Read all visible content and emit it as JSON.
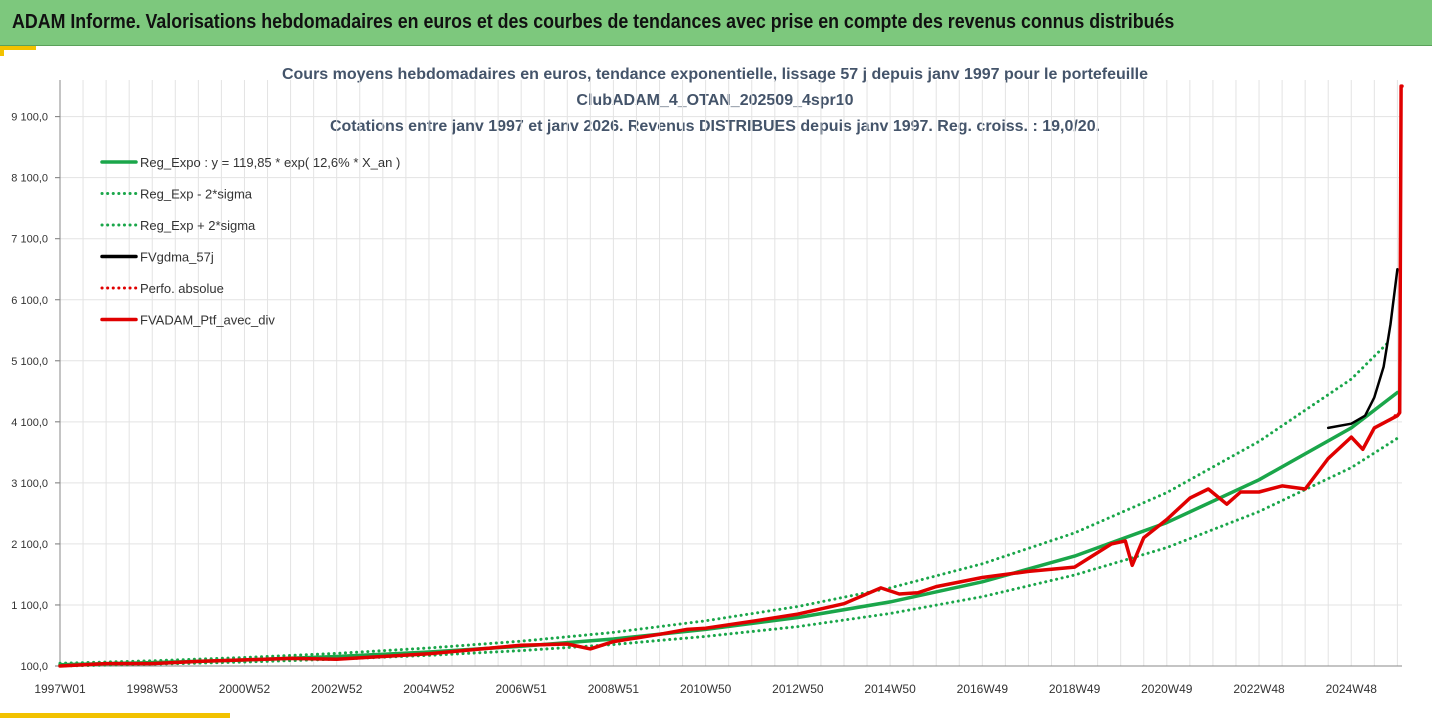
{
  "header": {
    "title": "ADAM Informe. Valorisations hebdomadaires en euros et des courbes de tendances avec prise en compte des revenus connus distribués"
  },
  "colors": {
    "banner": "#7dc87d",
    "accent": "#f2c200",
    "regression": "#1aa64a",
    "moving_average": "#000000",
    "portfolio": "#e00000"
  },
  "chart_data": {
    "type": "line",
    "title_lines": [
      "Cours moyens hebdomadaires  en euros, tendance exponentielle, lissage 57 j depuis janv 1997 pour le portefeuille",
      "ClubADAM_4_OTAN_202509_4spr10",
      "Cotations entre janv 1997 et janv 2026. Revenus DISTRIBUES depuis janv 1997. Reg. croiss. : 19,0/20."
    ],
    "x_range": [
      1997.0,
      2026.1
    ],
    "y_range": [
      100,
      9700
    ],
    "y_ticks": [
      100,
      1100,
      2100,
      3100,
      4100,
      5100,
      6100,
      7100,
      8100,
      9100
    ],
    "y_tick_labels": [
      "100,0",
      "1 100,0",
      "2 100,0",
      "3 100,0",
      "4 100,0",
      "5 100,0",
      "6 100,0",
      "7 100,0",
      "8 100,0",
      "9 100,0"
    ],
    "x_ticks": [
      1997.0,
      1999.0,
      2001.0,
      2003.0,
      2005.0,
      2007.0,
      2009.0,
      2011.0,
      2013.0,
      2015.0,
      2017.0,
      2019.0,
      2021.0,
      2023.0,
      2025.0
    ],
    "x_tick_labels": [
      "1997W01",
      "1998W53",
      "2000W52",
      "2002W52",
      "2004W52",
      "2006W51",
      "2008W51",
      "2010W50",
      "2012W50",
      "2014W50",
      "2016W49",
      "2018W49",
      "2020W49",
      "2022W48",
      "2024W48"
    ],
    "grid": true,
    "legend_position": "top-left",
    "legend": [
      {
        "label": "Reg_Expo : y = 119,85 * exp( 12,6% *  X_an )",
        "color": "#1aa64a",
        "style": "solid"
      },
      {
        "label": "Reg_Exp - 2*sigma",
        "color": "#1aa64a",
        "style": "dotted"
      },
      {
        "label": "Reg_Exp + 2*sigma",
        "color": "#1aa64a",
        "style": "dotted"
      },
      {
        "label": "FVgdma_57j",
        "color": "#000000",
        "style": "solid"
      },
      {
        "label": "Perfo. absolue",
        "color": "#e00000",
        "style": "dotted"
      },
      {
        "label": "FVADAM_Ptf_avec_div",
        "color": "#e00000",
        "style": "solid"
      }
    ],
    "series": [
      {
        "name": "Reg_Expo : y = 119,85 * exp( 12,6% *  X_an )",
        "x": [
          1997.0,
          1999.0,
          2001.0,
          2003.0,
          2005.0,
          2007.0,
          2009.0,
          2011.0,
          2013.0,
          2015.0,
          2017.0,
          2019.0,
          2021.0,
          2023.0,
          2025.0,
          2026.0
        ],
        "y": [
          120,
          155,
          199,
          255,
          329,
          422,
          542,
          700,
          895,
          1150,
          1480,
          1900,
          2450,
          3150,
          4000,
          4580
        ]
      },
      {
        "name": "Reg_Exp - 2*sigma",
        "x": [
          1997.0,
          1999.0,
          2001.0,
          2003.0,
          2005.0,
          2007.0,
          2009.0,
          2011.0,
          2013.0,
          2015.0,
          2017.0,
          2019.0,
          2021.0,
          2023.0,
          2025.0,
          2026.0
        ],
        "y": [
          100,
          130,
          166,
          213,
          275,
          352,
          452,
          585,
          745,
          960,
          1235,
          1590,
          2040,
          2630,
          3350,
          3830
        ]
      },
      {
        "name": "Reg_Exp + 2*sigma",
        "x": [
          1997.0,
          1999.0,
          2001.0,
          2003.0,
          2005.0,
          2007.0,
          2009.0,
          2011.0,
          2013.0,
          2015.0,
          2017.0,
          2019.0,
          2021.0,
          2023.0,
          2025.0,
          2025.8
        ],
        "y": [
          145,
          186,
          239,
          306,
          395,
          506,
          650,
          840,
          1075,
          1380,
          1775,
          2280,
          2940,
          3780,
          4800,
          5400
        ]
      },
      {
        "name": "FVgdma_57j",
        "x": [
          2024.5,
          2025.0,
          2025.3,
          2025.5,
          2025.7,
          2025.85,
          2026.0
        ],
        "y": [
          4000,
          4070,
          4200,
          4500,
          5000,
          5700,
          6600
        ]
      },
      {
        "name": "Perfo. absolue",
        "x": [
          2025.95,
          2026.05
        ],
        "y": [
          4200,
          4250
        ]
      },
      {
        "name": "FVADAM_Ptf_avec_div",
        "x": [
          1997.0,
          1998.0,
          1999.0,
          2000.0,
          2001.0,
          2002.0,
          2003.0,
          2004.0,
          2005.0,
          2006.0,
          2007.0,
          2008.0,
          2008.5,
          2009.0,
          2010.0,
          2010.6,
          2011.0,
          2012.0,
          2013.0,
          2014.0,
          2014.8,
          2015.2,
          2015.6,
          2016.0,
          2017.0,
          2018.0,
          2019.0,
          2019.8,
          2020.1,
          2020.25,
          2020.5,
          2021.0,
          2021.5,
          2021.9,
          2022.3,
          2022.6,
          2023.0,
          2023.5,
          2024.0,
          2024.5,
          2025.0,
          2025.25,
          2025.5,
          2026.0,
          2026.05,
          2026.08,
          2026.1
        ],
        "y": [
          100,
          140,
          140,
          175,
          200,
          225,
          210,
          255,
          300,
          370,
          440,
          460,
          380,
          500,
          620,
          700,
          720,
          830,
          950,
          1120,
          1380,
          1280,
          1300,
          1400,
          1550,
          1650,
          1720,
          2100,
          2150,
          1750,
          2200,
          2500,
          2850,
          3000,
          2750,
          2950,
          2950,
          3050,
          3000,
          3500,
          3850,
          3650,
          4000,
          4200,
          4250,
          9600,
          9600
        ]
      }
    ]
  }
}
